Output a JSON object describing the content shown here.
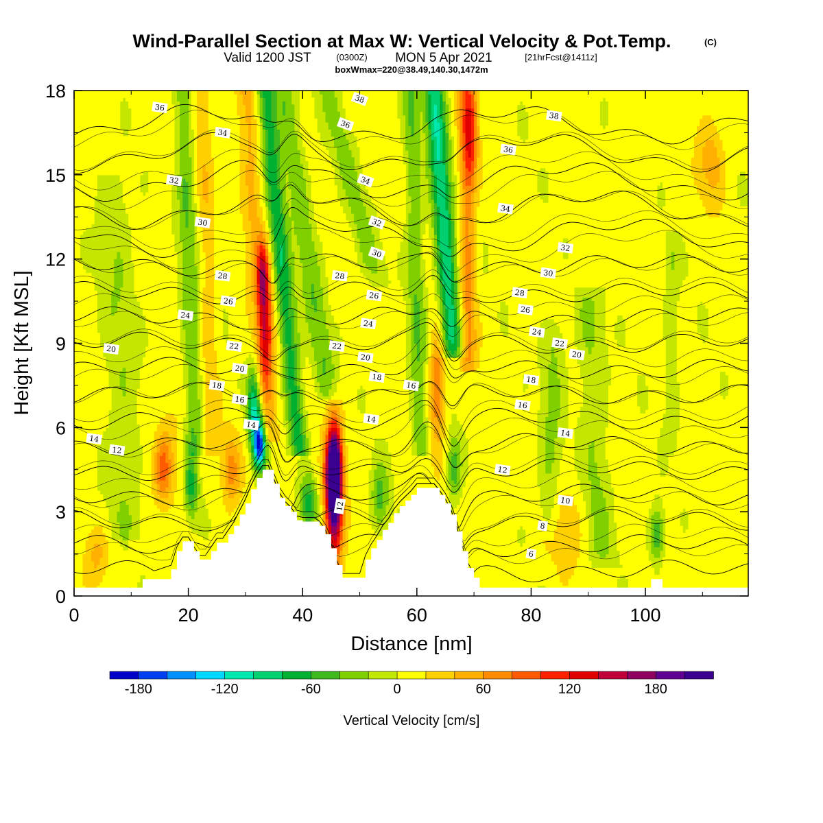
{
  "header": {
    "title": "Wind-Parallel Section at Max W: Vertical Velocity & Pot.Temp.",
    "copyright": "(C)",
    "valid_prefix": "Valid 1200 JST",
    "valid_utc": "(0300Z)",
    "valid_date": "MON 5 Apr 2021",
    "forecast": "[21hrFcst@1411z]",
    "box_info": "boxWmax=220@38.49,140.30,1472m"
  },
  "chart_data": {
    "type": "heatmap",
    "xlabel": "Distance [nm]",
    "ylabel": "Height [Kft MSL]",
    "xlim": [
      0,
      118
    ],
    "ylim": [
      0,
      18
    ],
    "x_ticks": [
      0,
      20,
      40,
      60,
      80,
      100
    ],
    "y_ticks": [
      0,
      3,
      6,
      9,
      12,
      15,
      18
    ],
    "colorbar": {
      "label": "Vertical Velocity [cm/s]",
      "min": -200,
      "max": 220,
      "step": 20,
      "tick_values": [
        -180,
        -120,
        -60,
        0,
        60,
        120,
        180
      ],
      "colors": [
        "#0000c8",
        "#0040f0",
        "#0090ff",
        "#00d8ff",
        "#00e8b0",
        "#00d070",
        "#00b030",
        "#40b820",
        "#80d000",
        "#c0e800",
        "#ffff00",
        "#ffd000",
        "#ffb000",
        "#ff8c00",
        "#ff5a00",
        "#ff2000",
        "#e00000",
        "#c0003a",
        "#900060",
        "#600090",
        "#3a0090"
      ]
    },
    "terrain_profile": {
      "x": [
        0,
        11,
        12,
        17,
        18,
        19,
        20,
        21,
        22,
        23,
        24,
        25,
        26,
        27,
        28,
        29,
        30,
        31,
        32,
        33,
        34,
        35,
        36,
        37,
        38,
        39,
        40,
        41,
        42,
        43,
        44,
        45,
        46,
        47,
        48,
        49,
        50,
        51,
        52,
        53,
        54,
        55,
        56,
        57,
        58,
        59,
        60,
        61,
        62,
        63,
        64,
        65,
        66,
        67,
        68,
        69,
        70,
        71,
        72,
        100,
        101,
        102,
        103,
        118
      ],
      "y": [
        0.3,
        0.3,
        0.6,
        0.95,
        1.6,
        1.95,
        1.95,
        1.6,
        1.3,
        1.3,
        1.6,
        1.9,
        1.9,
        2.2,
        2.5,
        2.9,
        3.3,
        3.8,
        4.2,
        4.5,
        4.5,
        4.0,
        3.5,
        3.2,
        3.0,
        2.7,
        2.65,
        2.65,
        2.65,
        2.5,
        2.2,
        1.7,
        1.1,
        0.65,
        0.65,
        0.65,
        0.65,
        1.3,
        1.7,
        2.0,
        2.35,
        2.6,
        2.95,
        3.2,
        3.4,
        3.6,
        3.85,
        3.85,
        3.85,
        3.85,
        3.6,
        3.3,
        2.9,
        2.3,
        1.6,
        1.0,
        0.65,
        0.3,
        0.3,
        0.3,
        0.6,
        0.6,
        0.3,
        0.3
      ]
    },
    "vertical_velocity_features": [
      {
        "x": 15.5,
        "z": 4.5,
        "value": 60,
        "sx": 1.4,
        "sz": 1.0
      },
      {
        "x": 16.5,
        "z": 5.3,
        "value": 30,
        "sx": 2.5,
        "sz": 1.8
      },
      {
        "x": 20.5,
        "z": 4.0,
        "value": -75,
        "sx": 1.2,
        "sz": 1.2
      },
      {
        "x": 27.5,
        "z": 4.5,
        "value": 60,
        "sx": 1.6,
        "sz": 1.2
      },
      {
        "x": 32.5,
        "z": 5.4,
        "value": -170,
        "sx": 1.0,
        "sz": 0.9
      },
      {
        "x": 31.5,
        "z": 6.6,
        "value": -110,
        "sx": 1.2,
        "sz": 1.5
      },
      {
        "x": 33.5,
        "z": 9.5,
        "value": 100,
        "sx": 1.2,
        "sz": 2.0
      },
      {
        "x": 33.0,
        "z": 11.5,
        "value": 95,
        "sx": 1.0,
        "sz": 1.2
      },
      {
        "x": 41.0,
        "z": 3.3,
        "value": -75,
        "sx": 1.4,
        "sz": 1.0
      },
      {
        "x": 45.5,
        "z": 4.4,
        "value": 210,
        "sx": 1.3,
        "sz": 1.5
      },
      {
        "x": 45.5,
        "z": 3.3,
        "value": 150,
        "sx": 1.5,
        "sz": 2.6
      },
      {
        "x": 53.5,
        "z": 3.5,
        "value": -55,
        "sx": 1.5,
        "sz": 1.2
      },
      {
        "x": 63.5,
        "z": 7.5,
        "value": 80,
        "sx": 1.3,
        "sz": 2.0
      },
      {
        "x": 66.5,
        "z": 4.5,
        "value": -60,
        "sx": 1.2,
        "sz": 1.2
      },
      {
        "x": 69.5,
        "z": 16.5,
        "value": 80,
        "sx": 1.2,
        "sz": 1.8
      },
      {
        "x": 102.0,
        "z": 2.2,
        "value": -70,
        "sx": 1.3,
        "sz": 1.0
      },
      {
        "x": 111.5,
        "z": 15.5,
        "value": 45,
        "sx": 2.5,
        "sz": 1.5
      },
      {
        "x": 4.0,
        "z": 1.5,
        "value": 35,
        "sx": 2.0,
        "sz": 1.0
      },
      {
        "x": 86.0,
        "z": 2.5,
        "value": 30,
        "sx": 3.0,
        "sz": 1.5
      }
    ],
    "vertical_velocity_bands": [
      {
        "x0": 21.0,
        "z0": 6.0,
        "x1": 19.0,
        "z1": 18.0,
        "value": -45,
        "width": 1.6
      },
      {
        "x0": 24.0,
        "z0": 6.0,
        "x1": 22.5,
        "z1": 18.0,
        "value": 25,
        "width": 1.5
      },
      {
        "x0": 34.0,
        "z0": 6.5,
        "x1": 30.0,
        "z1": 18.0,
        "value": 40,
        "width": 1.8
      },
      {
        "x0": 39.0,
        "z0": 6.0,
        "x1": 33.5,
        "z1": 18.0,
        "value": -80,
        "width": 1.6
      },
      {
        "x0": 44.0,
        "z0": 8.0,
        "x1": 36.5,
        "z1": 18.0,
        "value": -45,
        "width": 2.0
      },
      {
        "x0": 52.0,
        "z0": 12.0,
        "x1": 44.5,
        "z1": 18.0,
        "value": -35,
        "width": 2.0
      },
      {
        "x0": 60.5,
        "z0": 6.0,
        "x1": 59.0,
        "z1": 18.0,
        "value": -45,
        "width": 1.5
      },
      {
        "x0": 66.0,
        "z0": 9.5,
        "x1": 63.0,
        "z1": 18.0,
        "value": -105,
        "width": 1.8
      },
      {
        "x0": 69.0,
        "z0": 9.0,
        "x1": 68.5,
        "z1": 18.0,
        "value": 60,
        "width": 1.4
      },
      {
        "x0": 9.0,
        "z0": 3.0,
        "x1": 7.0,
        "z1": 14.0,
        "value": -25,
        "width": 3.0
      },
      {
        "x0": 83.0,
        "z0": 3.0,
        "x1": 84.0,
        "z1": 9.0,
        "value": -30,
        "width": 2.0
      },
      {
        "x0": 92.0,
        "z0": 2.0,
        "x1": 90.0,
        "z1": 10.0,
        "value": -30,
        "width": 2.5
      },
      {
        "x0": 104.5,
        "z0": 6.0,
        "x1": 104.5,
        "z1": 12.0,
        "value": -25,
        "width": 1.2
      }
    ],
    "theta_contours": {
      "levels": [
        4,
        6,
        8,
        10,
        12,
        14,
        16,
        18,
        20,
        22,
        24,
        26,
        28,
        30,
        32,
        34,
        36,
        38
      ],
      "contour_labels": [
        {
          "text": "36",
          "x": 15,
          "z": 17.4
        },
        {
          "text": "34",
          "x": 26,
          "z": 16.5
        },
        {
          "text": "32",
          "x": 17.5,
          "z": 14.8
        },
        {
          "text": "30",
          "x": 22.5,
          "z": 13.3
        },
        {
          "text": "28",
          "x": 26,
          "z": 11.4
        },
        {
          "text": "26",
          "x": 27,
          "z": 10.5
        },
        {
          "text": "24",
          "x": 19.5,
          "z": 10.0
        },
        {
          "text": "22",
          "x": 28,
          "z": 8.9
        },
        {
          "text": "20",
          "x": 6.5,
          "z": 8.8
        },
        {
          "text": "20",
          "x": 29,
          "z": 8.1
        },
        {
          "text": "18",
          "x": 25,
          "z": 7.5
        },
        {
          "text": "16",
          "x": 29,
          "z": 7.0
        },
        {
          "text": "14",
          "x": 31,
          "z": 6.1
        },
        {
          "text": "14",
          "x": 3.5,
          "z": 5.6
        },
        {
          "text": "12",
          "x": 7.5,
          "z": 5.2
        },
        {
          "text": "38",
          "x": 50,
          "z": 17.7
        },
        {
          "text": "36",
          "x": 47.5,
          "z": 16.8
        },
        {
          "text": "34",
          "x": 51,
          "z": 14.8
        },
        {
          "text": "32",
          "x": 53,
          "z": 13.3
        },
        {
          "text": "30",
          "x": 53,
          "z": 12.2
        },
        {
          "text": "28",
          "x": 46.5,
          "z": 11.4
        },
        {
          "text": "26",
          "x": 52.5,
          "z": 10.7
        },
        {
          "text": "24",
          "x": 51.5,
          "z": 9.7
        },
        {
          "text": "22",
          "x": 46,
          "z": 8.9
        },
        {
          "text": "20",
          "x": 51,
          "z": 8.5
        },
        {
          "text": "18",
          "x": 53,
          "z": 7.8
        },
        {
          "text": "16",
          "x": 59,
          "z": 7.5
        },
        {
          "text": "14",
          "x": 52,
          "z": 6.3
        },
        {
          "text": "12",
          "x": 46.5,
          "z": 3.2
        },
        {
          "text": "38",
          "x": 84,
          "z": 17.1
        },
        {
          "text": "36",
          "x": 76,
          "z": 15.9
        },
        {
          "text": "34",
          "x": 75.5,
          "z": 13.8
        },
        {
          "text": "32",
          "x": 86,
          "z": 12.4
        },
        {
          "text": "30",
          "x": 83,
          "z": 11.5
        },
        {
          "text": "28",
          "x": 78,
          "z": 10.8
        },
        {
          "text": "26",
          "x": 79,
          "z": 10.2
        },
        {
          "text": "24",
          "x": 81,
          "z": 9.4
        },
        {
          "text": "22",
          "x": 85,
          "z": 9.0
        },
        {
          "text": "20",
          "x": 88,
          "z": 8.6
        },
        {
          "text": "18",
          "x": 80,
          "z": 7.7
        },
        {
          "text": "16",
          "x": 78.5,
          "z": 6.8
        },
        {
          "text": "14",
          "x": 86,
          "z": 5.8
        },
        {
          "text": "12",
          "x": 75,
          "z": 4.5
        },
        {
          "text": "10",
          "x": 86,
          "z": 3.4
        },
        {
          "text": "8",
          "x": 82,
          "z": 2.5
        },
        {
          "text": "6",
          "x": 80,
          "z": 1.5
        }
      ]
    }
  }
}
